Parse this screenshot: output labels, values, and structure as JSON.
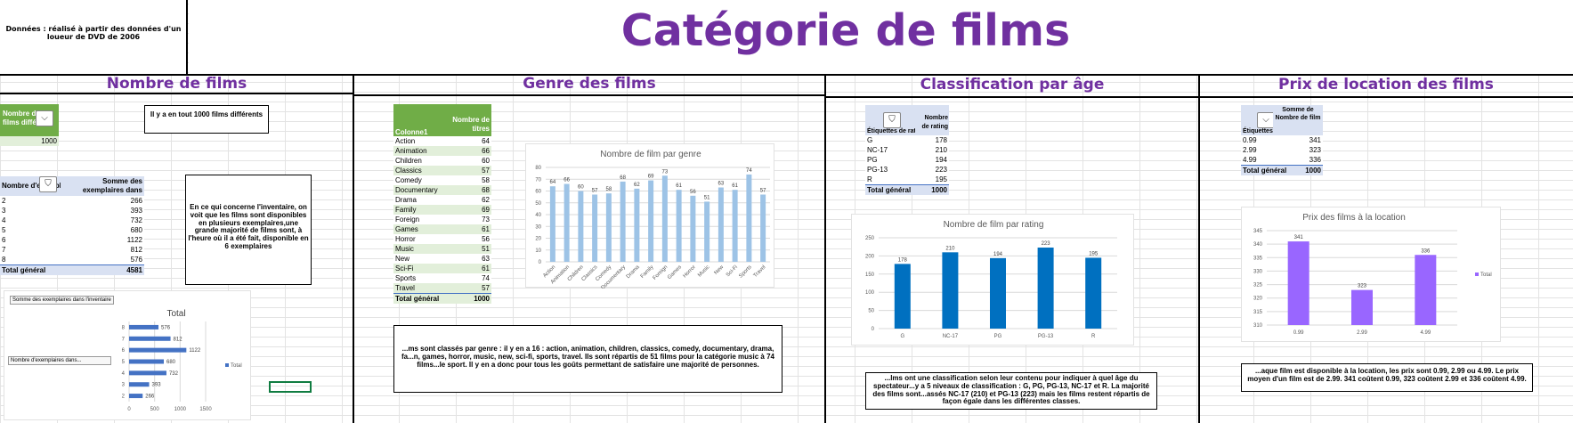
{
  "header": {
    "note": "Données : réalisé à partir des données d'un loueur de DVD de 2006",
    "title": "Catégorie de films"
  },
  "sections": {
    "s1": "Nombre de films",
    "s2": "Genre des films",
    "s3": "Classification par âge",
    "s4": "Prix de location des films"
  },
  "films": {
    "pivot_header": "Nombre de films différents",
    "pivot_value": "1000",
    "total_text": "Il y a en tout 1000 films différents",
    "inv_header_1": "Nombre d'exemplaires",
    "inv_header_2": "Somme des exemplaires dans l'inventaire",
    "inventory_rows": [
      {
        "k": "2",
        "v": "266"
      },
      {
        "k": "3",
        "v": "393"
      },
      {
        "k": "4",
        "v": "732"
      },
      {
        "k": "5",
        "v": "680"
      },
      {
        "k": "6",
        "v": "1122"
      },
      {
        "k": "7",
        "v": "812"
      },
      {
        "k": "8",
        "v": "576"
      }
    ],
    "inv_total_label": "Total général",
    "inv_total_value": "4581",
    "inventory_text": "En ce qui concerne l'inventaire, on voit que les films sont disponibles en plusieurs exemplaires,une grande majorité de films sont, à l'heure où il a été fait, disponible en 6 exemplaires",
    "chart_field_button": "Somme des exemplaires dans l'inventaire",
    "chart_axis_button": "Nombre d'exemplaires dans..."
  },
  "genres": {
    "col1": "Colonne1",
    "col2": "Nombre de titres",
    "rows": [
      {
        "k": "Action",
        "v": "64"
      },
      {
        "k": "Animation",
        "v": "66"
      },
      {
        "k": "Children",
        "v": "60"
      },
      {
        "k": "Classics",
        "v": "57"
      },
      {
        "k": "Comedy",
        "v": "58"
      },
      {
        "k": "Documentary",
        "v": "68"
      },
      {
        "k": "Drama",
        "v": "62"
      },
      {
        "k": "Family",
        "v": "69"
      },
      {
        "k": "Foreign",
        "v": "73"
      },
      {
        "k": "Games",
        "v": "61"
      },
      {
        "k": "Horror",
        "v": "56"
      },
      {
        "k": "Music",
        "v": "51"
      },
      {
        "k": "New",
        "v": "63"
      },
      {
        "k": "Sci-Fi",
        "v": "61"
      },
      {
        "k": "Sports",
        "v": "74"
      },
      {
        "k": "Travel",
        "v": "57"
      }
    ],
    "total_label": "Total général",
    "total_value": "1000",
    "text": "...ms sont classés par genre : il y en a 16 : action, animation, children, classics, comedy, documentary, drama, fa...n, games, horror, music, new, sci-fi, sports, travel. Ils sont répartis de 51 films pour la catégorie music à 74 films...le sport. Il y en a donc pour tous les goûts permettant de satisfaire une majorité de personnes."
  },
  "rating": {
    "header_1": "Étiquettes de rating",
    "header_2": "Nombre de rating",
    "rows": [
      {
        "k": "G",
        "v": "178"
      },
      {
        "k": "NC-17",
        "v": "210"
      },
      {
        "k": "PG",
        "v": "194"
      },
      {
        "k": "PG-13",
        "v": "223"
      },
      {
        "k": "R",
        "v": "195"
      }
    ],
    "total_label": "Total général",
    "total_value": "1000",
    "text": "...lms ont une classification selon leur contenu pour indiquer à quel âge du spectateur...y a 5 niveaux de classification : G, PG, PG-13, NC-17 et R. La majorité des films sont...assés NC-17 (210) et PG-13 (223) mais les films restent répartis de façon égale dans les différentes classes."
  },
  "price": {
    "header_1": "Étiquettes de prix",
    "header_2": "Somme de Nombre de film",
    "rows": [
      {
        "k": "0.99",
        "v": "341"
      },
      {
        "k": "2.99",
        "v": "323"
      },
      {
        "k": "4.99",
        "v": "336"
      }
    ],
    "total_label": "Total général",
    "total_value": "1000",
    "text": "...aque film est disponible à la location, les prix sont 0.99, 2.99 ou 4.99. Le prix moyen d'un film est de 2.99. 341 coûtent 0.99, 323 coûtent 2.99 et 336 coûtent 4.99."
  },
  "chart_data": [
    {
      "type": "bar",
      "orientation": "horizontal",
      "title": "Total",
      "categories": [
        "2",
        "3",
        "4",
        "5",
        "6",
        "7",
        "8"
      ],
      "series": [
        {
          "name": "Total",
          "values": [
            266,
            393,
            732,
            680,
            1122,
            812,
            576
          ]
        }
      ],
      "xlim": [
        0,
        1500
      ],
      "ticks": [
        "0",
        "500",
        "1000",
        "1500"
      ],
      "color": "#4472c4"
    },
    {
      "type": "bar",
      "title": "Nombre de film par genre",
      "categories": [
        "Action",
        "Animation",
        "Children",
        "Classics",
        "Comedy",
        "Documentary",
        "Drama",
        "Family",
        "Foreign",
        "Games",
        "Horror",
        "Music",
        "New",
        "Sci-Fi",
        "Sports",
        "Travel"
      ],
      "values": [
        64,
        66,
        60,
        57,
        58,
        68,
        62,
        69,
        73,
        61,
        56,
        51,
        63,
        61,
        74,
        57
      ],
      "ylim": [
        0,
        80
      ],
      "ticks": [
        "0",
        "10",
        "20",
        "30",
        "40",
        "50",
        "60",
        "70",
        "80"
      ],
      "color": "#9dc3e6"
    },
    {
      "type": "bar",
      "title": "Nombre de film par rating",
      "categories": [
        "G",
        "NC-17",
        "PG",
        "PG-13",
        "R"
      ],
      "values": [
        178,
        210,
        194,
        223,
        195
      ],
      "ylim": [
        0,
        250
      ],
      "ticks": [
        "0",
        "50",
        "100",
        "150",
        "200",
        "250"
      ],
      "color": "#0070c0"
    },
    {
      "type": "bar",
      "title": "Prix des films à la location",
      "categories": [
        "0.99",
        "2.99",
        "4.99"
      ],
      "series": [
        {
          "name": "Total",
          "values": [
            341,
            323,
            336
          ]
        }
      ],
      "ylim": [
        310,
        345
      ],
      "ticks": [
        "310",
        "315",
        "320",
        "325",
        "330",
        "335",
        "340",
        "345"
      ],
      "color": "#9966ff"
    }
  ]
}
